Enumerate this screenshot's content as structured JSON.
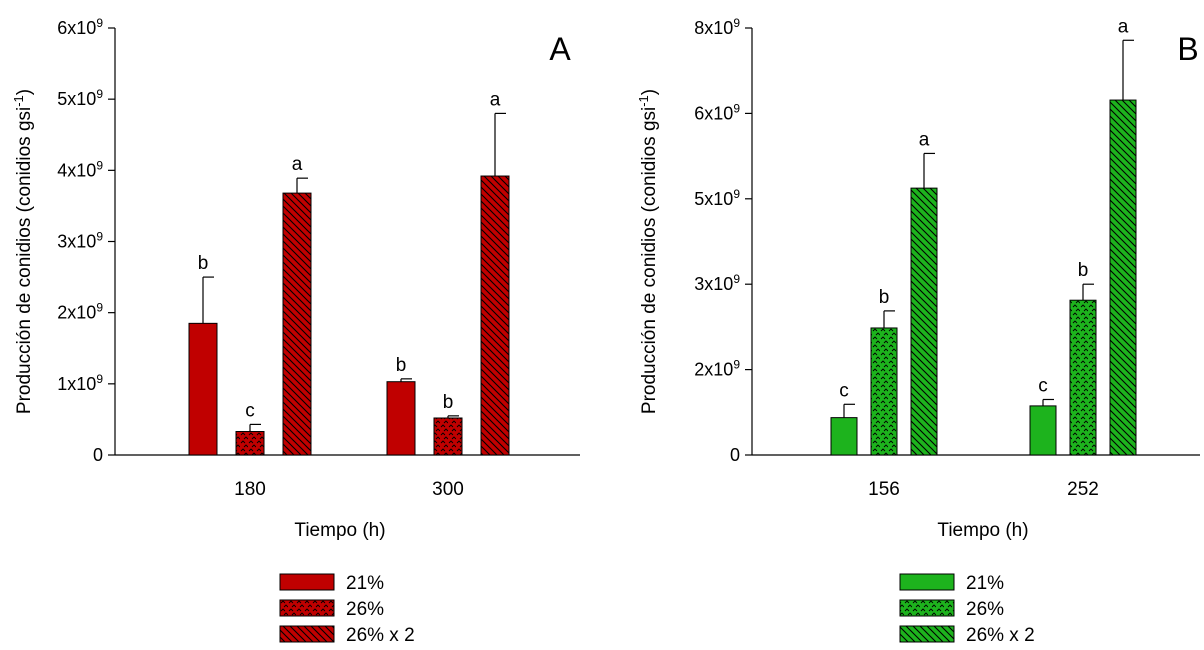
{
  "chart_data": [
    {
      "type": "bar",
      "panel_label": "A",
      "xlabel": "Tiempo (h)",
      "ylabel_main": "Producción de conidios (conidios gsi",
      "ylabel_sup": "-1",
      "ylabel_close": ")",
      "ylim": [
        0,
        6000000000
      ],
      "yticks": [
        {
          "label": "0",
          "value": 0
        },
        {
          "label": "1x10",
          "sup": "9",
          "value": 1000000000
        },
        {
          "label": "2x10",
          "sup": "9",
          "value": 2000000000
        },
        {
          "label": "3x10",
          "sup": "9",
          "value": 3000000000
        },
        {
          "label": "4x10",
          "sup": "9",
          "value": 4000000000
        },
        {
          "label": "5x10",
          "sup": "9",
          "value": 5000000000
        },
        {
          "label": "6x10",
          "sup": "9",
          "value": 6000000000
        }
      ],
      "categories": [
        "180",
        "300"
      ],
      "series": [
        {
          "name": "21%",
          "pattern": "solid",
          "values": [
            1850000000,
            1030000000
          ],
          "errors": [
            650000000,
            40000000
          ],
          "letters": [
            "b",
            "b"
          ]
        },
        {
          "name": "26%",
          "pattern": "dots",
          "values": [
            330000000,
            520000000
          ],
          "errors": [
            100000000,
            30000000
          ],
          "letters": [
            "c",
            "b"
          ]
        },
        {
          "name": "26% x 2",
          "pattern": "diag",
          "values": [
            3680000000,
            3920000000
          ],
          "errors": [
            210000000,
            880000000
          ],
          "letters": [
            "a",
            "a"
          ]
        }
      ],
      "color": "#c00000"
    },
    {
      "type": "bar",
      "panel_label": "B",
      "xlabel": "Tiempo (h)",
      "ylabel_main": "Producción de conidios (conidios gsi",
      "ylabel_sup": "-1",
      "ylabel_close": ")",
      "ylim": [
        0,
        8000000000
      ],
      "yticks": [
        {
          "label": "0",
          "value": 0
        },
        {
          "label": "2x10",
          "sup": "9",
          "value": 1600000000
        },
        {
          "label": "3x10",
          "sup": "9",
          "value": 3200000000
        },
        {
          "label": "5x10",
          "sup": "9",
          "value": 4800000000
        },
        {
          "label": "6x10",
          "sup": "9",
          "value": 6400000000
        },
        {
          "label": "8x10",
          "sup": "9",
          "value": 8000000000
        }
      ],
      "categories": [
        "156",
        "252"
      ],
      "series": [
        {
          "name": "21%",
          "pattern": "solid",
          "values": [
            700000000,
            920000000
          ],
          "errors": [
            250000000,
            120000000
          ],
          "letters": [
            "c",
            "c"
          ]
        },
        {
          "name": "26%",
          "pattern": "dots",
          "values": [
            2380000000,
            2900000000
          ],
          "errors": [
            320000000,
            300000000
          ],
          "letters": [
            "b",
            "b"
          ]
        },
        {
          "name": "26% x 2",
          "pattern": "diag",
          "values": [
            5000000000,
            6650000000
          ],
          "errors": [
            650000000,
            1120000000
          ],
          "letters": [
            "a",
            "a"
          ]
        }
      ],
      "color": "#1db31d"
    }
  ]
}
